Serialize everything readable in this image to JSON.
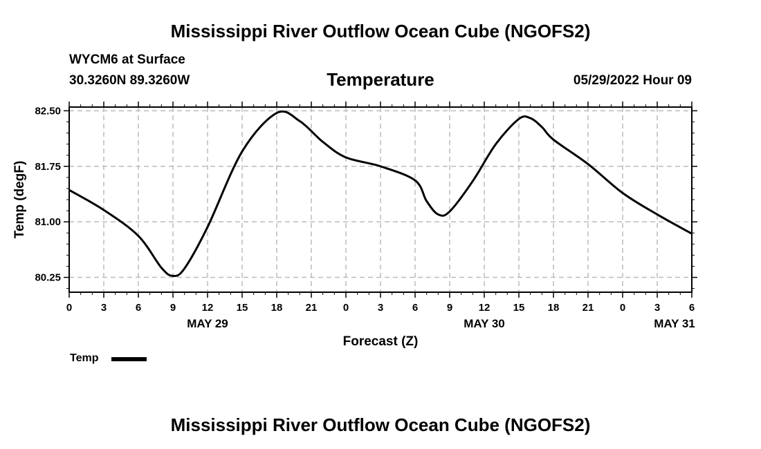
{
  "header": {
    "title": "Mississippi River Outflow Ocean Cube (NGOFS2)",
    "station": "WYCM6 at Surface",
    "coords": "30.3260N  89.3260W",
    "panel_title": "Temperature",
    "datetime": "05/29/2022 Hour 09"
  },
  "footer": {
    "title": "Mississippi River Outflow Ocean Cube (NGOFS2)"
  },
  "legend": {
    "label": "Temp"
  },
  "colors": {
    "line": "#000000",
    "grid": "#bbbbbb"
  },
  "chart_data": {
    "type": "line",
    "title": "Temperature",
    "xlabel": "Forecast (Z)",
    "ylabel": "Temp (degF)",
    "x_unit": "hours from 05/29 00Z",
    "xlim": [
      0,
      54
    ],
    "ylim": [
      80.05,
      82.55
    ],
    "yticks": [
      80.25,
      81.0,
      81.75,
      82.5
    ],
    "ytick_labels": [
      "80.25",
      "81.00",
      "81.75",
      "82.50"
    ],
    "xticks": [
      0,
      3,
      6,
      9,
      12,
      15,
      18,
      21,
      24,
      27,
      30,
      33,
      36,
      39,
      42,
      45,
      48,
      51,
      54
    ],
    "xtick_labels": [
      "0",
      "3",
      "6",
      "9",
      "12",
      "15",
      "18",
      "21",
      "0",
      "3",
      "6",
      "9",
      "12",
      "15",
      "18",
      "21",
      "0",
      "3",
      "6"
    ],
    "day_labels": [
      {
        "x": 12,
        "label": "MAY 29"
      },
      {
        "x": 36,
        "label": "MAY 30"
      },
      {
        "x": 52.5,
        "label": "MAY 31"
      }
    ],
    "grid": true,
    "legend_position": "bottom-left",
    "series": [
      {
        "name": "Temp",
        "x": [
          0,
          3,
          6,
          8,
          9,
          10,
          12,
          15,
          18,
          20,
          22,
          24,
          27,
          30,
          31,
          32,
          33,
          35,
          37,
          39,
          40,
          41,
          42,
          45,
          48,
          51,
          54
        ],
        "values": [
          81.43,
          81.16,
          80.81,
          80.38,
          80.27,
          80.37,
          80.93,
          81.95,
          82.47,
          82.36,
          82.08,
          81.87,
          81.75,
          81.56,
          81.28,
          81.1,
          81.14,
          81.55,
          82.05,
          82.39,
          82.4,
          82.28,
          82.11,
          81.78,
          81.39,
          81.1,
          80.84
        ]
      }
    ]
  }
}
